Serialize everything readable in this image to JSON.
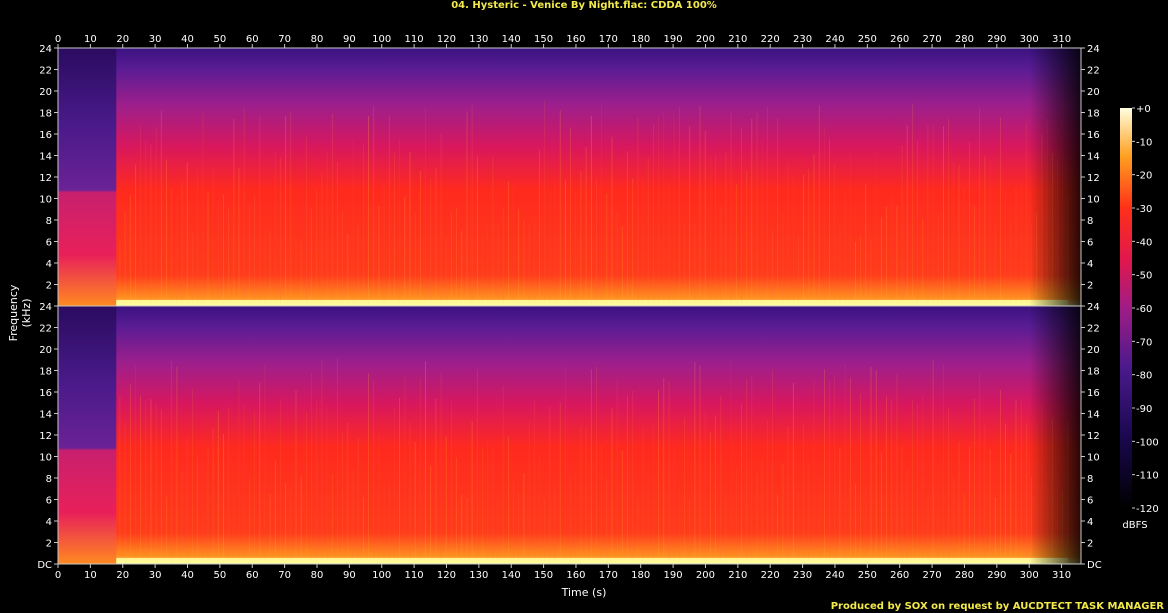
{
  "header": {
    "title": "04. Hysteric - Venice By Night.flac: CDDA 100%"
  },
  "footer": {
    "credit": "Produced by SOX on request by AUCDTECT TASK MANAGER"
  },
  "chart_data": {
    "type": "heatmap",
    "title": "04. Hysteric - Venice By Night.flac: CDDA 100%",
    "xlabel": "Time (s)",
    "ylabel": "Frequency (kHz)",
    "xlim": [
      0,
      316
    ],
    "ylim": [
      0,
      24
    ],
    "x_ticks": [
      "0",
      "10",
      "20",
      "30",
      "40",
      "50",
      "60",
      "70",
      "80",
      "90",
      "100",
      "110",
      "120",
      "130",
      "140",
      "150",
      "160",
      "170",
      "180",
      "190",
      "200",
      "210",
      "220",
      "230",
      "240",
      "250",
      "260",
      "270",
      "280",
      "290",
      "300",
      "310"
    ],
    "y_ticks_upper": [
      "2",
      "4",
      "6",
      "8",
      "10",
      "12",
      "14",
      "16",
      "18",
      "20",
      "22",
      "24"
    ],
    "y_ticks_lower": [
      "DC",
      "2",
      "4",
      "6",
      "8",
      "10",
      "12",
      "14",
      "16",
      "18",
      "20",
      "22",
      "24"
    ],
    "channels": 2,
    "colorbar": {
      "unit": "dBFS",
      "range": [
        -120,
        0
      ],
      "ticks": [
        "+0",
        "-10",
        "-20",
        "-30",
        "-40",
        "-50",
        "-60",
        "-70",
        "-80",
        "-90",
        "-100",
        "-110",
        "-120"
      ]
    },
    "colors": {
      "background": "#000000",
      "frame": "#c8c8c8",
      "title": "#f2e94a",
      "high": "#ffffa0",
      "mid": "#ff2a1e",
      "low": "#5a1c94",
      "floor": "#000000"
    }
  }
}
